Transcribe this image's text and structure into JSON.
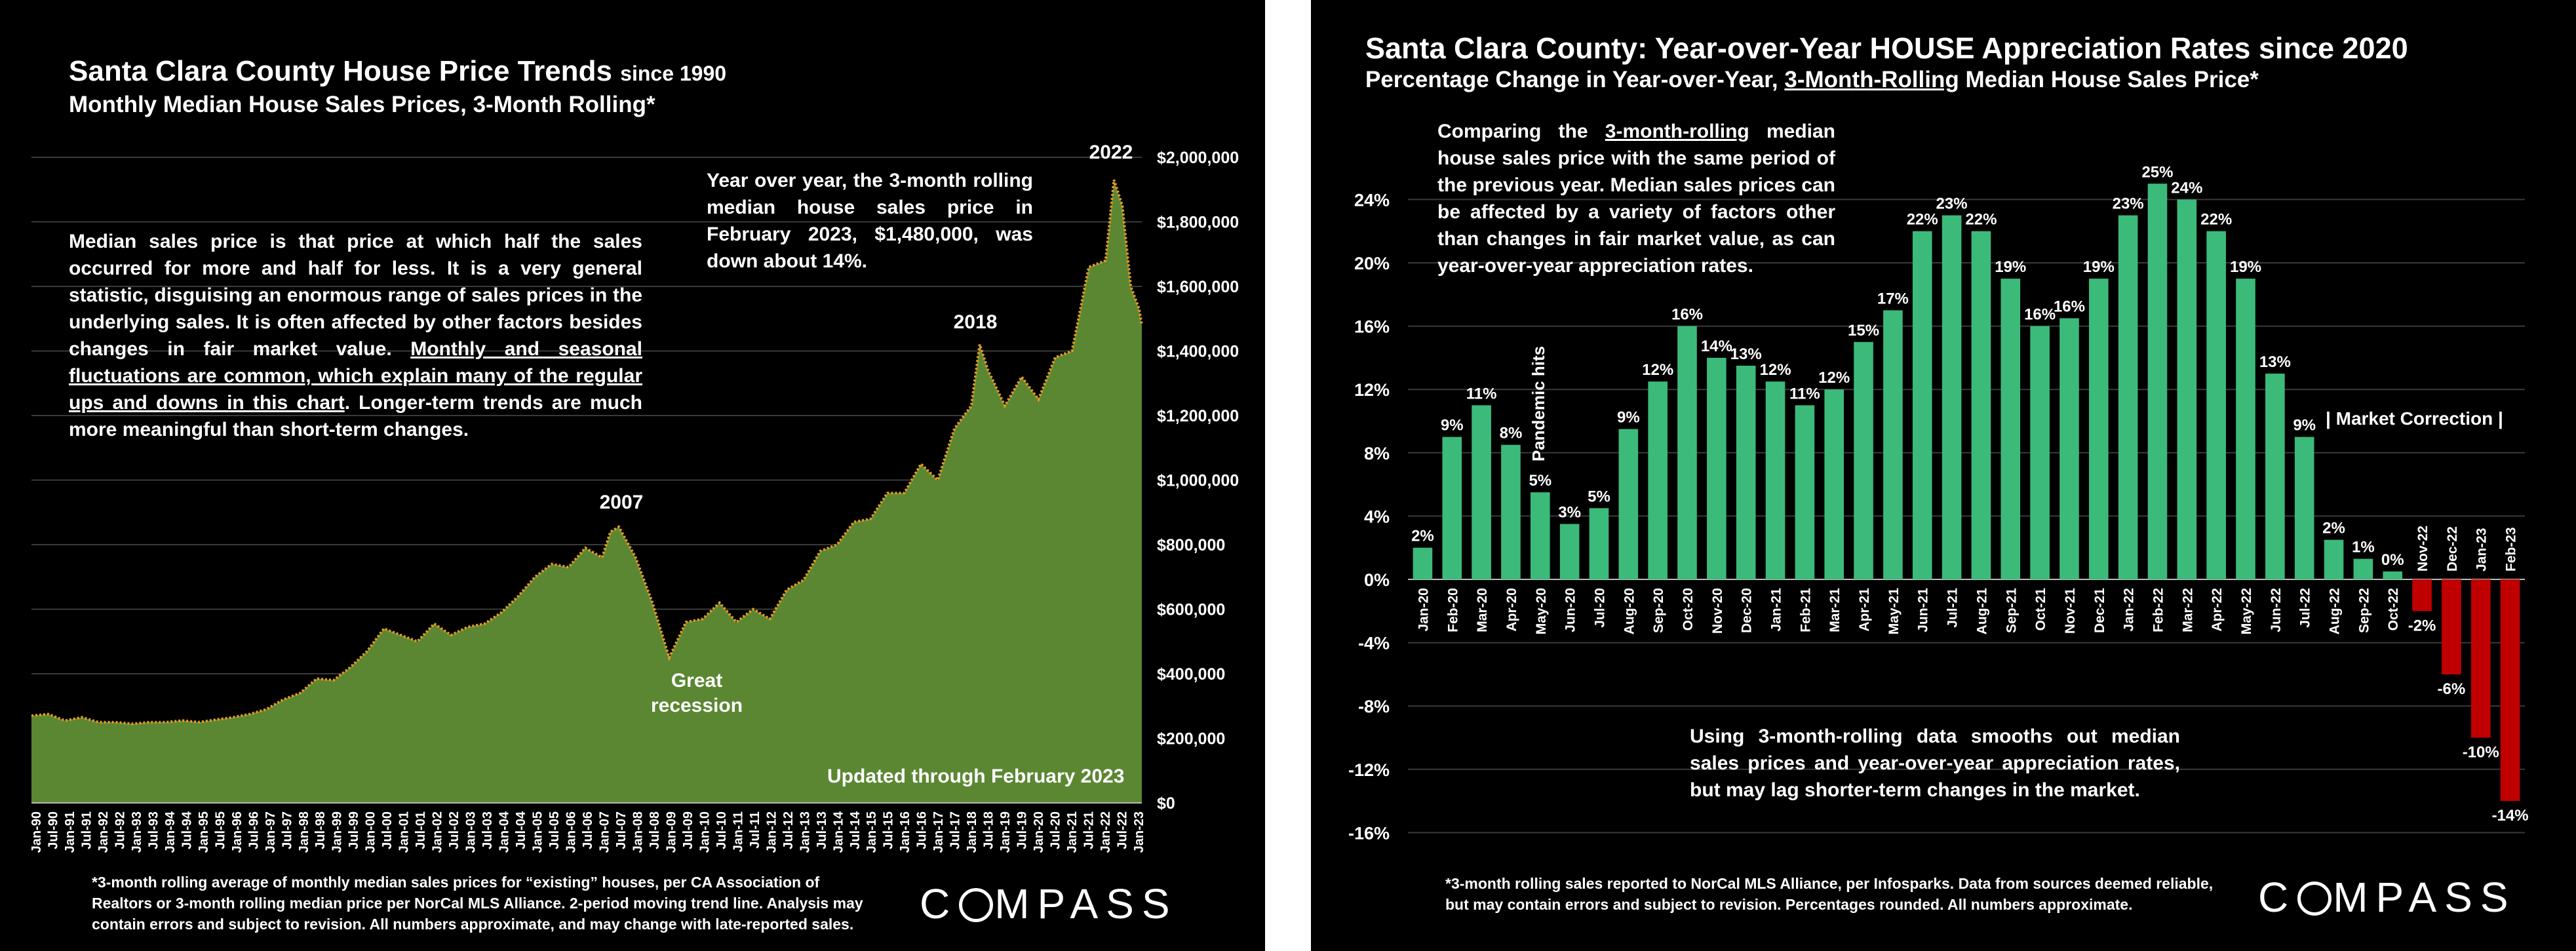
{
  "left": {
    "title_main": "Santa Clara County House Price Trends",
    "title_since": "since 1990",
    "subtitle": "Monthly Median House Sales Prices, 3-Month Rolling*",
    "note_text": "Median sales price is that price at which half the sales occurred for more and half for less. It is a very general statistic, disguising an enormous range of sales prices in the underlying sales. It is often affected by other factors besides changes in fair market value.",
    "note_underlined": "Monthly and seasonal fluctuations are common, which explain many of the regular ups and downs in this chart",
    "note_end": ". Longer-term trends are much more meaningful than short-term changes.",
    "yoy_note": "Year over year, the 3-month rolling median house sales price in February 2023, $1,480,000, was down about 14%.",
    "updated": "Updated through February 2023",
    "footer": "*3-month rolling average of monthly median sales prices for “existing” houses, per CA Association of Realtors or 3-month rolling median price per NorCal MLS Alliance. 2-period moving trend line. Analysis may contain errors and subject to revision. All numbers approximate, and may change with late-reported sales.",
    "logo": "COMPASS",
    "colors": {
      "area": "#5b8733",
      "trend": "#e69a26",
      "background": "#000000"
    }
  },
  "right": {
    "title": "Santa Clara County: Year-over-Year HOUSE Appreciation Rates since 2020",
    "subtitle_pre": "Percentage Change in Year-over-Year,",
    "subtitle_underlined": "3-Month-Rolling",
    "subtitle_post": "Median House Sales Price*",
    "note_pre": "Comparing the",
    "note_underlined": "3-month-rolling",
    "note_post": "median house sales price with the same period of the previous year. Median sales prices can be affected by a variety of factors other than changes in fair market value, as can year-over-year appreciation rates.",
    "bottom_note": "Using 3-month-rolling data smooths out median sales prices and year-over-year appreciation rates, but may lag shorter-term changes in the market.",
    "footer": "*3-month rolling sales reported to NorCal MLS Alliance, per Infosparks. Data from sources deemed reliable, but may contain errors and subject to revision. Percentages rounded. All numbers approximate.",
    "logo": "COMPASS",
    "colors": {
      "positive": "#3cba7a",
      "negative": "#c00000"
    }
  },
  "chart_data": [
    {
      "type": "area",
      "ylim": [
        0,
        2000000
      ],
      "ytick_labels": [
        "$0",
        "$200,000",
        "$400,000",
        "$600,000",
        "$800,000",
        "$1,000,000",
        "$1,200,000",
        "$1,400,000",
        "$1,600,000",
        "$1,800,000",
        "$2,000,000"
      ],
      "xtick_labels": [
        "Jan-90",
        "Jul-90",
        "Jan-91",
        "Jul-91",
        "Jan-92",
        "Jul-92",
        "Jan-93",
        "Jul-93",
        "Jan-94",
        "Jul-94",
        "Jan-95",
        "Jul-95",
        "Jan-96",
        "Jul-96",
        "Jan-97",
        "Jul-97",
        "Jan-98",
        "Jul-98",
        "Jan-99",
        "Jul-99",
        "Jan-00",
        "Jul-00",
        "Jan-01",
        "Jul-01",
        "Jan-02",
        "Jul-02",
        "Jan-03",
        "Jul-03",
        "Jan-04",
        "Jul-04",
        "Jan-05",
        "Jul-05",
        "Jan-06",
        "Jul-06",
        "Jan-07",
        "Jul-07",
        "Jan-08",
        "Jul-08",
        "Jan-09",
        "Jul-09",
        "Jan-10",
        "Jul-10",
        "Jan-11",
        "Jul-11",
        "Jan-12",
        "Jul-12",
        "Jan-13",
        "Jul-13",
        "Jan-14",
        "Jul-14",
        "Jan-15",
        "Jul-15",
        "Jan-16",
        "Jul-16",
        "Jan-17",
        "Jul-17",
        "Jan-18",
        "Jul-18",
        "Jan-19",
        "Jul-19",
        "Jan-20",
        "Jul-20",
        "Jan-21",
        "Jul-21",
        "Jan-22",
        "Jul-22",
        "Jan-23"
      ],
      "x": [
        1990.0,
        1990.5,
        1991.0,
        1991.5,
        1992.0,
        1992.5,
        1993.0,
        1993.5,
        1994.0,
        1994.5,
        1995.0,
        1995.5,
        1996.0,
        1996.5,
        1997.0,
        1997.5,
        1998.0,
        1998.5,
        1999.0,
        1999.5,
        2000.0,
        2000.5,
        2001.0,
        2001.5,
        2002.0,
        2002.5,
        2003.0,
        2003.5,
        2004.0,
        2004.5,
        2005.0,
        2005.5,
        2006.0,
        2006.5,
        2007.0,
        2007.25,
        2007.5,
        2008.0,
        2008.5,
        2009.0,
        2009.5,
        2010.0,
        2010.5,
        2011.0,
        2011.5,
        2012.0,
        2012.5,
        2013.0,
        2013.5,
        2014.0,
        2014.5,
        2015.0,
        2015.5,
        2016.0,
        2016.5,
        2017.0,
        2017.5,
        2018.0,
        2018.25,
        2018.5,
        2019.0,
        2019.5,
        2020.0,
        2020.5,
        2021.0,
        2021.5,
        2022.0,
        2022.25,
        2022.5,
        2022.75,
        2023.0,
        2023.08
      ],
      "values": [
        270000,
        275000,
        255000,
        265000,
        250000,
        250000,
        245000,
        250000,
        250000,
        255000,
        250000,
        258000,
        265000,
        275000,
        290000,
        320000,
        340000,
        385000,
        380000,
        420000,
        470000,
        540000,
        520000,
        500000,
        555000,
        520000,
        545000,
        555000,
        590000,
        640000,
        700000,
        740000,
        730000,
        790000,
        760000,
        840000,
        855000,
        760000,
        620000,
        450000,
        560000,
        570000,
        620000,
        560000,
        600000,
        570000,
        660000,
        690000,
        780000,
        800000,
        870000,
        880000,
        960000,
        960000,
        1050000,
        1000000,
        1160000,
        1230000,
        1420000,
        1340000,
        1230000,
        1320000,
        1250000,
        1380000,
        1400000,
        1660000,
        1680000,
        1930000,
        1850000,
        1600000,
        1530000,
        1480000
      ],
      "annotations": [
        "2022",
        "2018",
        "2007",
        "Great",
        "recession"
      ]
    },
    {
      "type": "bar",
      "ylim": [
        -16,
        24
      ],
      "ytick_labels": [
        "-16%",
        "-12%",
        "-8%",
        "-4%",
        "0%",
        "4%",
        "8%",
        "12%",
        "16%",
        "20%",
        "24%"
      ],
      "categories": [
        "Jan-20",
        "Feb-20",
        "Mar-20",
        "Apr-20",
        "May-20",
        "Jun-20",
        "Jul-20",
        "Aug-20",
        "Sep-20",
        "Oct-20",
        "Nov-20",
        "Dec-20",
        "Jan-21",
        "Feb-21",
        "Mar-21",
        "Apr-21",
        "May-21",
        "Jun-21",
        "Jul-21",
        "Aug-21",
        "Sep-21",
        "Oct-21",
        "Nov-21",
        "Dec-21",
        "Jan-22",
        "Feb-22",
        "Mar-22",
        "Apr-22",
        "May-22",
        "Jun-22",
        "Jul-22",
        "Aug-22",
        "Sep-22",
        "Oct-22",
        "Nov-22",
        "Dec-22",
        "Jan-23",
        "Feb-23"
      ],
      "values": [
        2,
        9,
        11,
        8.5,
        5.5,
        3.5,
        4.5,
        9.5,
        12.5,
        16,
        14,
        13.5,
        12.5,
        11,
        12,
        15,
        17,
        22,
        23,
        22,
        19,
        16,
        16.5,
        19,
        23,
        25,
        24,
        22,
        19,
        13,
        9,
        2.5,
        1.3,
        0.5,
        -2,
        -6,
        -10,
        -14
      ],
      "data_labels": [
        "2%",
        "9%",
        "11%",
        "8%",
        "5%",
        "3%",
        "5%",
        "9%",
        "12%",
        "16%",
        "14%",
        "13%",
        "12%",
        "11%",
        "12%",
        "15%",
        "17%",
        "22%",
        "23%",
        "22%",
        "19%",
        "16%",
        "16%",
        "19%",
        "23%",
        "25%",
        "24%",
        "22%",
        "19%",
        "13%",
        "9%",
        "2%",
        "1%",
        "0%",
        "-2%",
        "-6%",
        "-10%",
        "-14%"
      ],
      "annotations": [
        "Pandemic hits",
        "| Market Correction |"
      ]
    }
  ]
}
